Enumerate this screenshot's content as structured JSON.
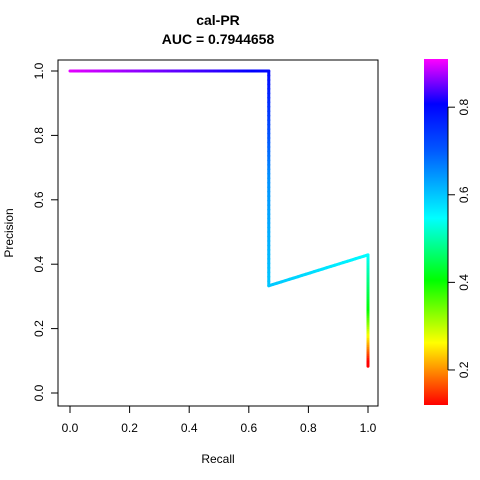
{
  "chart_data": {
    "type": "line",
    "title": "cal-PR",
    "subtitle": "AUC = 0.7944658",
    "xlabel": "Recall",
    "ylabel": "Precision",
    "xlim": [
      0,
      1
    ],
    "ylim": [
      0,
      1
    ],
    "x_ticks": [
      "0.0",
      "0.2",
      "0.4",
      "0.6",
      "0.8",
      "1.0"
    ],
    "y_ticks": [
      "0.0",
      "0.2",
      "0.4",
      "0.6",
      "0.8",
      "1.0"
    ],
    "grid": false,
    "legend": "none",
    "series": [
      {
        "x": [
          0.0,
          0.33,
          0.667,
          0.667,
          0.667,
          1.0,
          1.0,
          1.0
        ],
        "y": [
          1.0,
          1.0,
          1.0,
          0.667,
          0.333,
          0.429,
          0.25,
          0.083
        ],
        "color_value": [
          0.9,
          0.85,
          0.8,
          0.65,
          0.6,
          0.55,
          0.4,
          0.1
        ]
      }
    ],
    "colorbar": {
      "range": [
        0.12,
        0.91
      ],
      "ticks": [
        "0.2",
        "0.4",
        "0.6",
        "0.8"
      ],
      "tick_values": [
        0.2,
        0.4,
        0.6,
        0.8
      ],
      "colors": [
        "#ff0000",
        "#ffff00",
        "#00ff00",
        "#00ffff",
        "#0000ff",
        "#ff00ff"
      ]
    }
  }
}
